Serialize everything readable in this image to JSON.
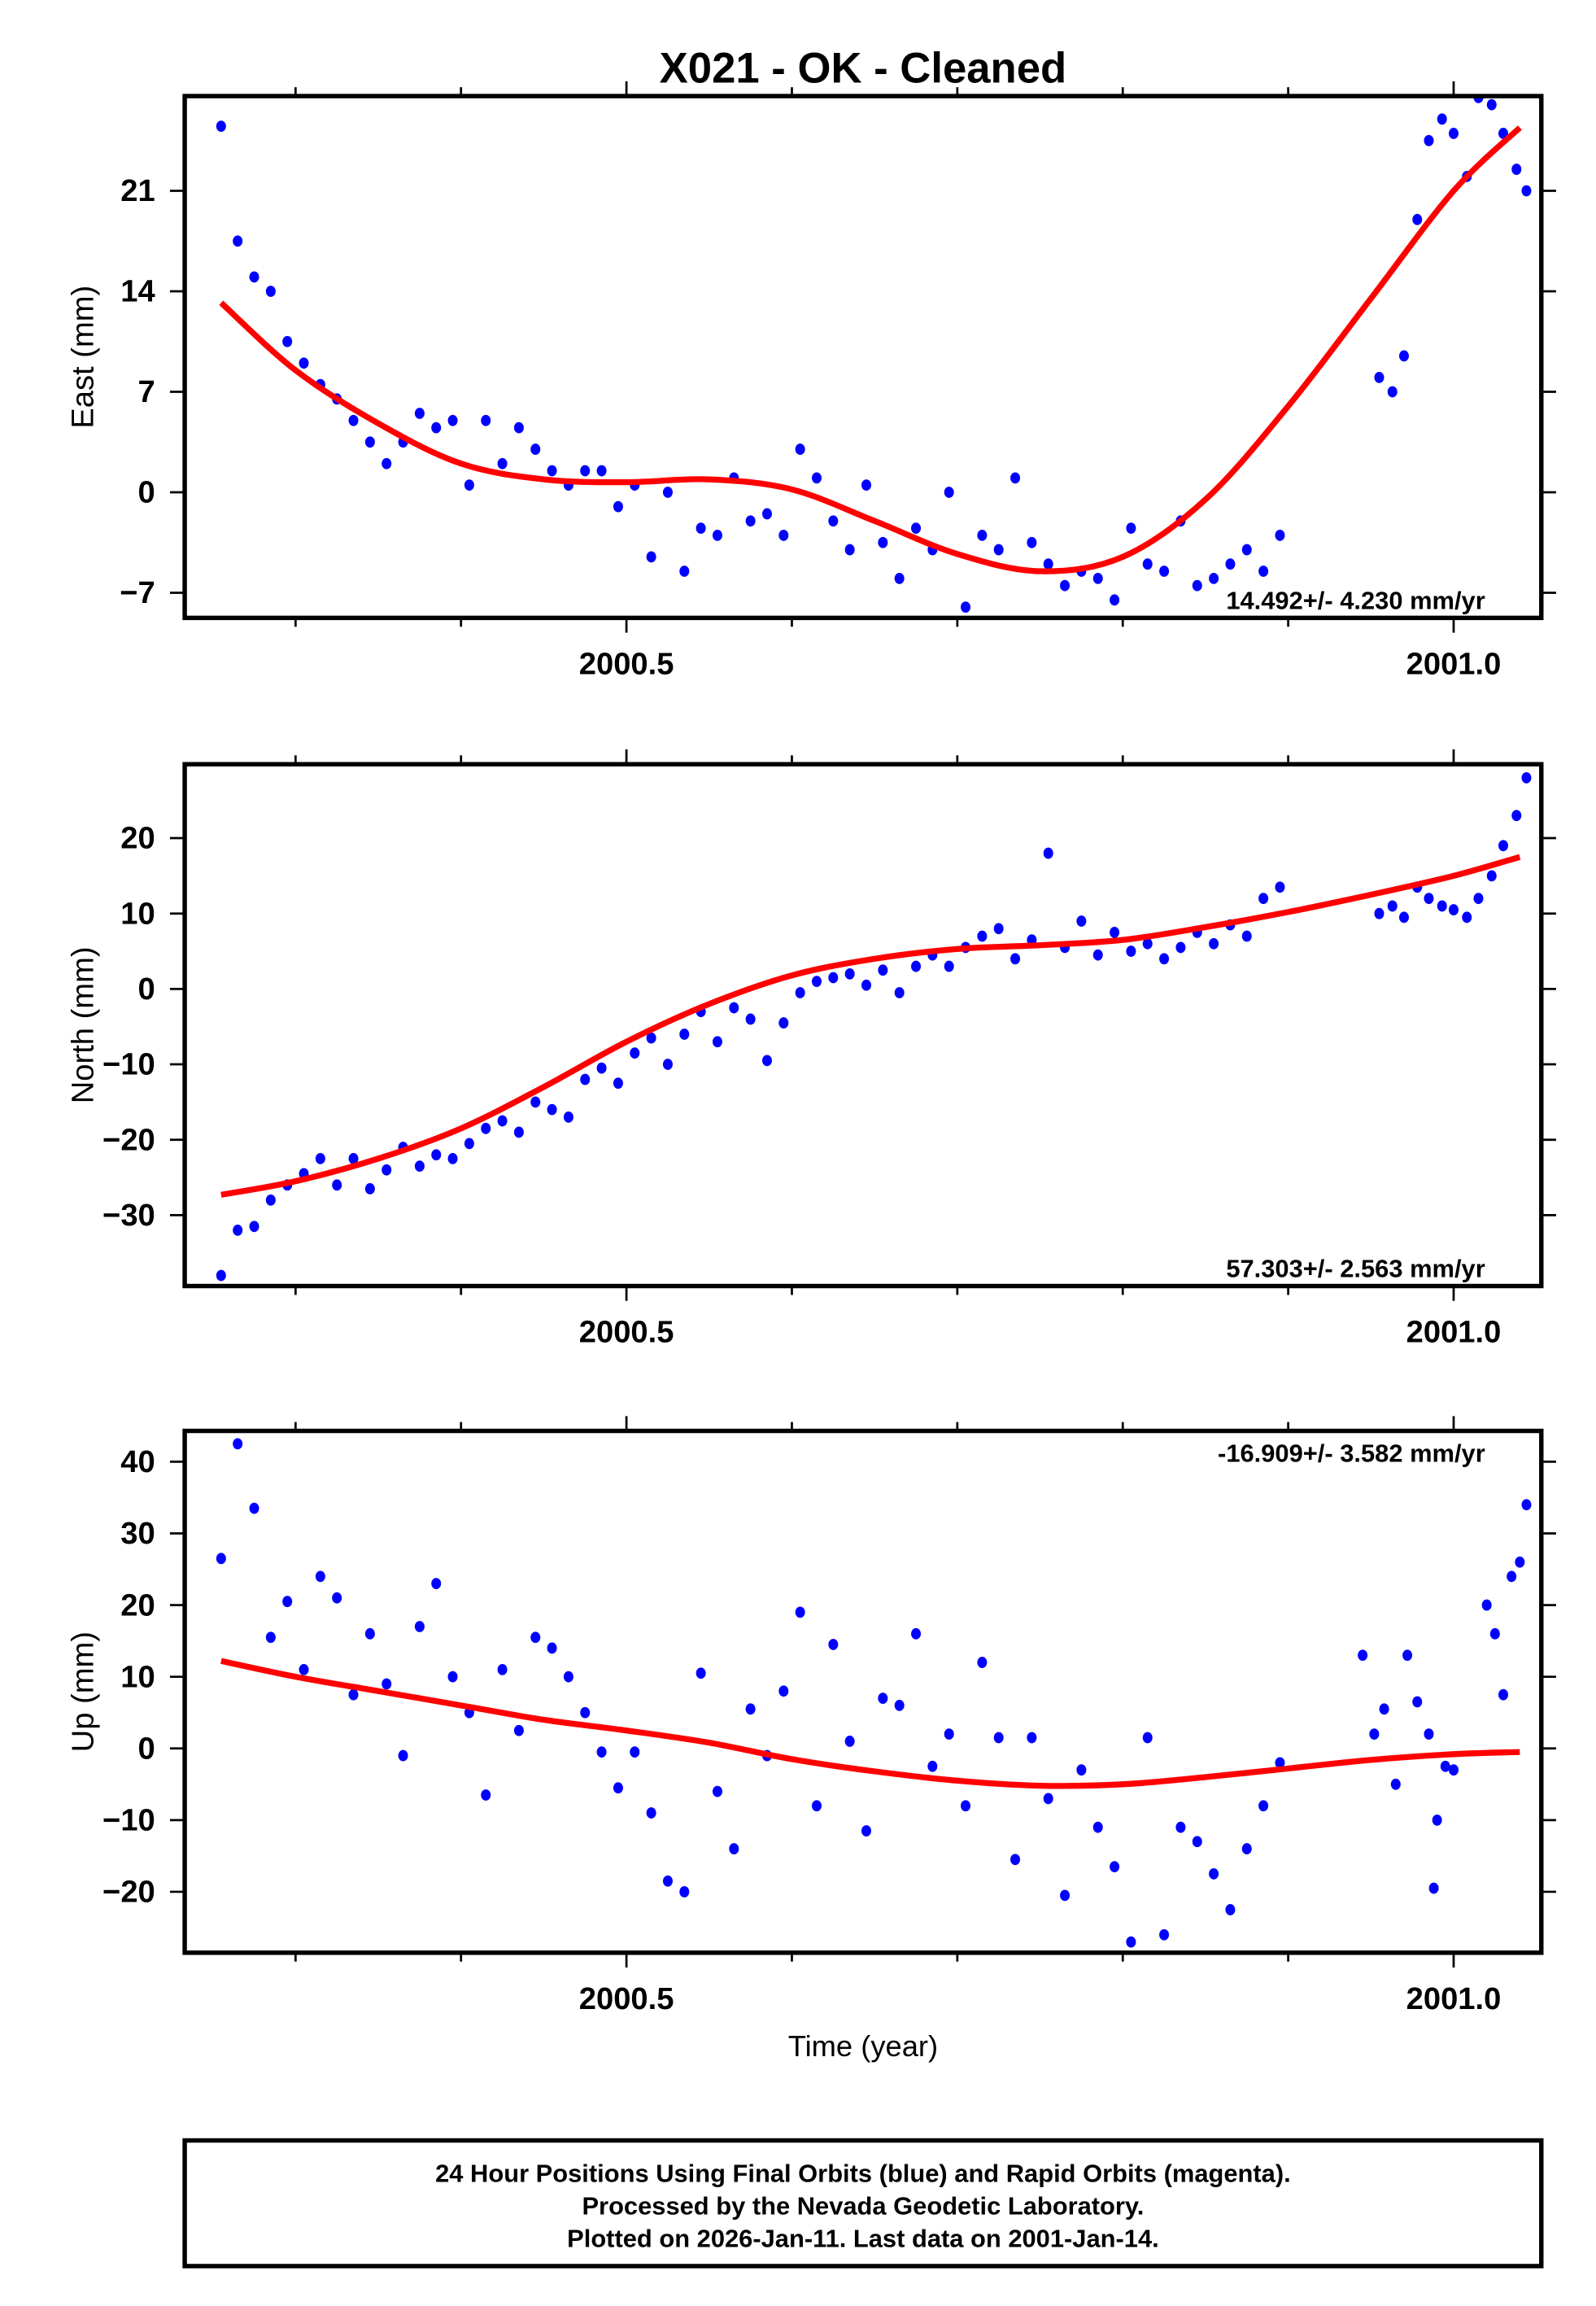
{
  "title": "X021  - OK - Cleaned",
  "colors": {
    "points": "#0000ff",
    "fit": "#ff0000",
    "axis": "#000000"
  },
  "chart_data": [
    {
      "type": "scatter",
      "name": "east",
      "ylabel": "East (mm)",
      "xlabel": "",
      "xlim": [
        2000.233,
        2001.053
      ],
      "ylim": [
        -8.75,
        27.6
      ],
      "xticks": [
        2000.5,
        2001.0
      ],
      "xtick_labels": [
        "2000.5",
        "2001.0"
      ],
      "yticks": [
        21,
        14,
        7,
        0,
        -7
      ],
      "ytick_labels": [
        "21",
        "14",
        "7",
        "0",
        "−7"
      ],
      "rate_label": "14.492+/- 4.230 mm/yr",
      "rate_position": "bottom-right",
      "x": [
        2000.255,
        2000.265,
        2000.275,
        2000.285,
        2000.295,
        2000.305,
        2000.315,
        2000.325,
        2000.335,
        2000.345,
        2000.355,
        2000.365,
        2000.375,
        2000.385,
        2000.395,
        2000.405,
        2000.415,
        2000.425,
        2000.435,
        2000.445,
        2000.455,
        2000.465,
        2000.475,
        2000.485,
        2000.495,
        2000.505,
        2000.515,
        2000.525,
        2000.535,
        2000.545,
        2000.555,
        2000.565,
        2000.575,
        2000.585,
        2000.595,
        2000.605,
        2000.615,
        2000.625,
        2000.635,
        2000.645,
        2000.655,
        2000.665,
        2000.675,
        2000.685,
        2000.695,
        2000.705,
        2000.715,
        2000.725,
        2000.735,
        2000.745,
        2000.755,
        2000.765,
        2000.775,
        2000.785,
        2000.795,
        2000.805,
        2000.815,
        2000.825,
        2000.835,
        2000.845,
        2000.855,
        2000.865,
        2000.875,
        2000.885,
        2000.895,
        2000.955,
        2000.963,
        2000.97,
        2000.978,
        2000.985,
        2000.993,
        2001.0,
        2001.008,
        2001.015,
        2001.023,
        2001.03,
        2001.038,
        2001.044
      ],
      "y": [
        25.5,
        17.5,
        15,
        14,
        10.5,
        9,
        7.5,
        6.5,
        5,
        3.5,
        2,
        3.5,
        5.5,
        4.5,
        5,
        0.5,
        5,
        2,
        4.5,
        3,
        1.5,
        0.5,
        1.5,
        1.5,
        -1,
        0.5,
        -4.5,
        0,
        -5.5,
        -2.5,
        -3,
        1,
        -2,
        -1.5,
        -3,
        3,
        1,
        -2,
        -4,
        0.5,
        -3.5,
        -6,
        -2.5,
        -4,
        0,
        -8,
        -3,
        -4,
        1,
        -3.5,
        -5,
        -6.5,
        -5.5,
        -6,
        -7.5,
        -2.5,
        -5,
        -5.5,
        -2,
        -6.5,
        -6,
        -5,
        -4,
        -5.5,
        -3,
        8,
        7,
        9.5,
        19,
        24.5,
        26,
        25,
        22,
        27.5,
        27,
        25,
        22.5,
        21
      ],
      "fit_x": [
        2000.255,
        2000.3,
        2000.35,
        2000.4,
        2000.45,
        2000.5,
        2000.55,
        2000.6,
        2000.65,
        2000.7,
        2000.75,
        2000.8,
        2000.85,
        2000.9,
        2000.95,
        2001.0,
        2001.04
      ],
      "fit_y": [
        13.2,
        8.5,
        4.8,
        2.0,
        0.9,
        0.7,
        0.9,
        0.2,
        -2,
        -4.3,
        -5.5,
        -4.5,
        -0.5,
        6,
        13.5,
        21,
        25.4
      ]
    },
    {
      "type": "scatter",
      "name": "north",
      "ylabel": "North (mm)",
      "xlabel": "",
      "xlim": [
        2000.233,
        2001.053
      ],
      "ylim": [
        -39.4,
        29.8
      ],
      "xticks": [
        2000.5,
        2001.0
      ],
      "xtick_labels": [
        "2000.5",
        "2001.0"
      ],
      "yticks": [
        20,
        10,
        0,
        -10,
        -20,
        -30
      ],
      "ytick_labels": [
        "20",
        "10",
        "0",
        "−10",
        "−20",
        "−30"
      ],
      "rate_label": "57.303+/- 2.563 mm/yr",
      "rate_position": "bottom-right",
      "x": [
        2000.255,
        2000.265,
        2000.275,
        2000.285,
        2000.295,
        2000.305,
        2000.315,
        2000.325,
        2000.335,
        2000.345,
        2000.355,
        2000.365,
        2000.375,
        2000.385,
        2000.395,
        2000.405,
        2000.415,
        2000.425,
        2000.435,
        2000.445,
        2000.455,
        2000.465,
        2000.475,
        2000.485,
        2000.495,
        2000.505,
        2000.515,
        2000.525,
        2000.535,
        2000.545,
        2000.555,
        2000.565,
        2000.575,
        2000.585,
        2000.595,
        2000.605,
        2000.615,
        2000.625,
        2000.635,
        2000.645,
        2000.655,
        2000.665,
        2000.675,
        2000.685,
        2000.695,
        2000.705,
        2000.715,
        2000.725,
        2000.735,
        2000.745,
        2000.755,
        2000.765,
        2000.775,
        2000.785,
        2000.795,
        2000.805,
        2000.815,
        2000.825,
        2000.835,
        2000.845,
        2000.855,
        2000.865,
        2000.875,
        2000.885,
        2000.895,
        2000.955,
        2000.963,
        2000.97,
        2000.978,
        2000.985,
        2000.993,
        2001.0,
        2001.008,
        2001.015,
        2001.023,
        2001.03,
        2001.038,
        2001.044
      ],
      "y": [
        -38,
        -32,
        -31.5,
        -28,
        -26,
        -24.5,
        -22.5,
        -26,
        -22.5,
        -26.5,
        -24,
        -21,
        -23.5,
        -22,
        -22.5,
        -20.5,
        -18.5,
        -17.5,
        -19,
        -15,
        -16,
        -17,
        -12,
        -10.5,
        -12.5,
        -8.5,
        -6.5,
        -10,
        -6,
        -3,
        -7,
        -2.5,
        -4,
        -9.5,
        -4.5,
        -0.5,
        1,
        1.5,
        2,
        0.5,
        2.5,
        -0.5,
        3,
        4.5,
        3,
        5.5,
        7,
        8,
        4,
        6.5,
        18,
        5.5,
        9,
        4.5,
        7.5,
        5,
        6,
        4,
        5.5,
        7.5,
        6,
        8.5,
        7,
        12,
        13.5,
        10,
        11,
        9.5,
        13.5,
        12,
        11,
        10.5,
        9.5,
        12,
        15,
        19,
        23,
        28
      ],
      "fit_x": [
        2000.255,
        2000.3,
        2000.35,
        2000.4,
        2000.45,
        2000.5,
        2000.55,
        2000.6,
        2000.65,
        2000.7,
        2000.75,
        2000.8,
        2000.85,
        2000.9,
        2000.95,
        2001.0,
        2001.04
      ],
      "fit_y": [
        -27.3,
        -25.5,
        -22.5,
        -18.5,
        -13,
        -7,
        -2,
        1.8,
        4,
        5.3,
        5.8,
        6.5,
        8.2,
        10.2,
        12.5,
        15,
        17.5
      ]
    },
    {
      "type": "scatter",
      "name": "up",
      "ylabel": "Up (mm)",
      "xlabel": "Time (year)",
      "xlim": [
        2000.233,
        2001.053
      ],
      "ylim": [
        -28.5,
        44.3
      ],
      "xticks": [
        2000.5,
        2001.0
      ],
      "xtick_labels": [
        "2000.5",
        "2001.0"
      ],
      "yticks": [
        40,
        30,
        20,
        10,
        0,
        -10,
        -20
      ],
      "ytick_labels": [
        "40",
        "30",
        "20",
        "10",
        "0",
        "−10",
        "−20"
      ],
      "rate_label": "-16.909+/- 3.582 mm/yr",
      "rate_position": "top-right",
      "x": [
        2000.255,
        2000.265,
        2000.275,
        2000.285,
        2000.295,
        2000.305,
        2000.315,
        2000.325,
        2000.335,
        2000.345,
        2000.355,
        2000.365,
        2000.375,
        2000.385,
        2000.395,
        2000.405,
        2000.415,
        2000.425,
        2000.435,
        2000.445,
        2000.455,
        2000.465,
        2000.475,
        2000.485,
        2000.495,
        2000.505,
        2000.515,
        2000.525,
        2000.535,
        2000.545,
        2000.555,
        2000.565,
        2000.575,
        2000.585,
        2000.595,
        2000.605,
        2000.615,
        2000.625,
        2000.635,
        2000.645,
        2000.655,
        2000.665,
        2000.675,
        2000.685,
        2000.695,
        2000.705,
        2000.715,
        2000.725,
        2000.735,
        2000.745,
        2000.755,
        2000.765,
        2000.775,
        2000.785,
        2000.795,
        2000.805,
        2000.815,
        2000.825,
        2000.835,
        2000.845,
        2000.855,
        2000.865,
        2000.875,
        2000.885,
        2000.895,
        2000.945,
        2000.952,
        2000.958,
        2000.965,
        2000.972,
        2000.978,
        2000.985,
        2000.99,
        2000.995,
        2001.0,
        2000.988,
        2001.02,
        2001.025,
        2001.03,
        2001.035,
        2001.04,
        2001.044
      ],
      "y": [
        26.5,
        42.5,
        33.5,
        15.5,
        20.5,
        11,
        24,
        21,
        7.5,
        16,
        9,
        -1,
        17,
        23,
        10,
        5,
        -6.5,
        11,
        2.5,
        15.5,
        14,
        10,
        5,
        -0.5,
        -5.5,
        -0.5,
        -9,
        -18.5,
        -20,
        10.5,
        -6,
        -14,
        5.5,
        -1,
        8,
        19,
        -8,
        14.5,
        1,
        -11.5,
        7,
        6,
        16,
        -2.5,
        2,
        -8,
        12,
        1.5,
        -15.5,
        1.5,
        -7,
        -20.5,
        -3,
        -11,
        -16.5,
        -27,
        1.5,
        -26,
        -11,
        -13,
        -17.5,
        -22.5,
        -14,
        -8,
        -2,
        13,
        2,
        5.5,
        -5,
        13,
        6.5,
        2,
        -10,
        -2.5,
        -3,
        -19.5,
        20,
        16,
        7.5,
        24,
        26,
        34
      ],
      "fit_x": [
        2000.255,
        2000.3,
        2000.35,
        2000.4,
        2000.45,
        2000.5,
        2000.55,
        2000.6,
        2000.65,
        2000.7,
        2000.75,
        2000.8,
        2000.85,
        2000.9,
        2000.95,
        2001.0,
        2001.04
      ],
      "fit_y": [
        12.2,
        10,
        8,
        6,
        4,
        2.5,
        0.8,
        -1.5,
        -3.2,
        -4.5,
        -5.2,
        -5,
        -4,
        -2.8,
        -1.6,
        -0.8,
        -0.5
      ]
    }
  ],
  "footer": {
    "line1": "24 Hour Positions Using Final Orbits (blue) and Rapid Orbits (magenta).",
    "line2": "Processed by the Nevada Geodetic Laboratory.",
    "line3": "Plotted on 2026-Jan-11. Last data on 2001-Jan-14."
  }
}
